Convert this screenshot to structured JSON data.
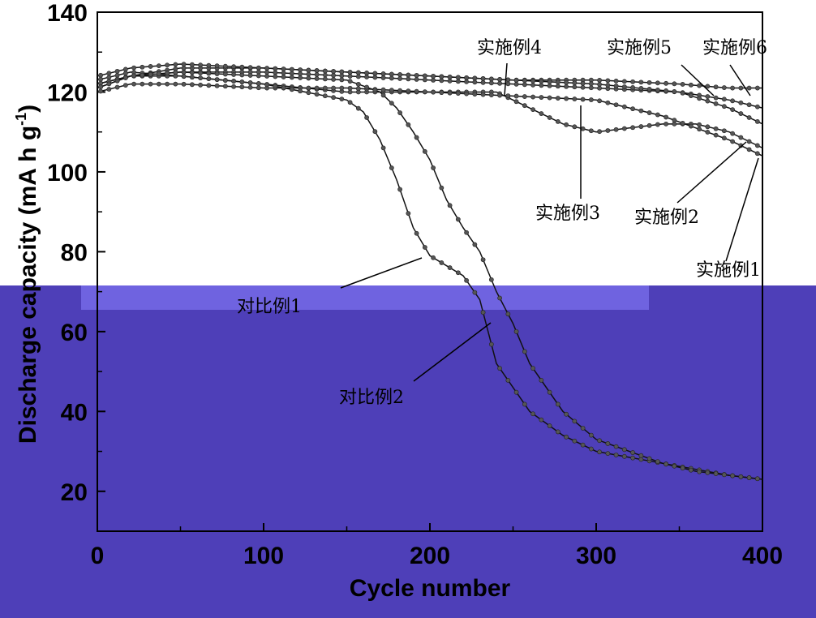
{
  "chart_data": {
    "type": "line",
    "title": "",
    "xlabel": "Cycle number",
    "ylabel": "Discharge capacity (mA h g-1)",
    "ylabel_parts": {
      "main": "Discharge capacity (mA h g",
      "exponent": "-1",
      "close": ")"
    },
    "xlim": [
      0,
      400
    ],
    "ylim": [
      10,
      140
    ],
    "x_ticks": [
      0,
      100,
      200,
      300,
      400
    ],
    "y_ticks": [
      20,
      40,
      60,
      80,
      100,
      120,
      140
    ],
    "grid": false,
    "legend": "none",
    "colors": {
      "top_band_bg": "#ffffff",
      "lower_band_bg": "#4e3fb8",
      "marker": "#555555",
      "line": "#111111",
      "axis": "#000000"
    },
    "series": [
      {
        "name": "实施例6",
        "x": [
          0,
          20,
          50,
          100,
          150,
          200,
          250,
          300,
          350,
          380,
          400
        ],
        "y": [
          121,
          124,
          126,
          126,
          125,
          124,
          123,
          123,
          122,
          121,
          121
        ]
      },
      {
        "name": "实施例5",
        "x": [
          0,
          20,
          50,
          100,
          150,
          200,
          250,
          300,
          350,
          380,
          400
        ],
        "y": [
          122,
          124,
          125,
          125,
          124,
          123,
          122,
          121,
          120,
          118,
          116
        ]
      },
      {
        "name": "实施例4",
        "x": [
          0,
          20,
          50,
          100,
          150,
          200,
          250,
          300,
          350,
          380,
          400
        ],
        "y": [
          124,
          126,
          127,
          126,
          125,
          124,
          123,
          122,
          120,
          116,
          112
        ]
      },
      {
        "name": "实施例3",
        "x": [
          0,
          20,
          50,
          100,
          150,
          200,
          220,
          240,
          260,
          280,
          300,
          320,
          340,
          360,
          380,
          400
        ],
        "y": [
          123,
          125,
          124,
          122,
          120,
          120,
          120,
          120,
          116,
          112,
          110,
          111,
          112,
          112,
          110,
          106
        ]
      },
      {
        "name": "实施例2",
        "x": [
          0,
          20,
          50,
          100,
          150,
          200,
          250,
          300,
          320,
          340,
          360,
          380,
          400
        ],
        "y": [
          120,
          122,
          122,
          121,
          121,
          120,
          119,
          118,
          116,
          114,
          111,
          108,
          104
        ]
      },
      {
        "name": "对比例1",
        "x": [
          0,
          20,
          50,
          100,
          150,
          160,
          170,
          180,
          190,
          200,
          220,
          230,
          240,
          260,
          280,
          300,
          340,
          380,
          400
        ],
        "y": [
          122,
          124,
          124,
          122,
          118,
          115,
          108,
          98,
          86,
          79,
          74,
          68,
          52,
          40,
          34,
          30,
          27,
          24,
          23
        ]
      },
      {
        "name": "对比例2",
        "x": [
          0,
          20,
          50,
          100,
          150,
          170,
          180,
          190,
          200,
          210,
          220,
          230,
          240,
          250,
          260,
          280,
          300,
          320,
          340,
          360,
          380,
          400
        ],
        "y": [
          121,
          124,
          125,
          124,
          123,
          120,
          116,
          110,
          103,
          93,
          86,
          80,
          70,
          62,
          52,
          40,
          33,
          30,
          27,
          25,
          24,
          23
        ]
      }
    ],
    "annotations": [
      {
        "text": "实施例4",
        "series": "实施例4"
      },
      {
        "text": "实施例5",
        "series": "实施例5"
      },
      {
        "text": "实施例6",
        "series": "实施例6"
      },
      {
        "text": "实施例3",
        "series": "实施例3"
      },
      {
        "text": "实施例2",
        "series": "实施例2"
      },
      {
        "text": "实施例1",
        "series": "实施例1"
      },
      {
        "text": "对比例1",
        "series": "对比例1"
      },
      {
        "text": "对比例2",
        "series": "对比例2"
      }
    ]
  }
}
